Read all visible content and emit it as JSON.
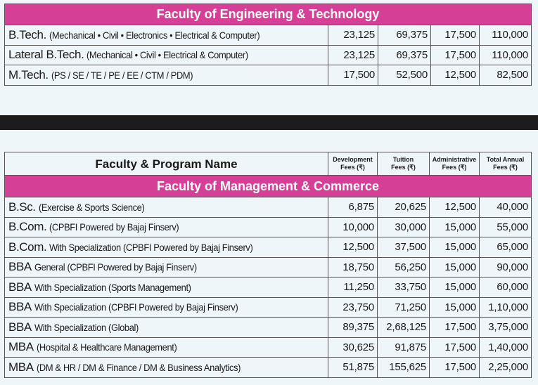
{
  "engineering": {
    "title": "Faculty of Engineering & Technology",
    "rows": [
      {
        "prefix": "B.Tech.",
        "detail": "(Mechanical • Civil • Electronics • Electrical & Computer)",
        "dev": "23,125",
        "tuition": "69,375",
        "admin": "17,500",
        "total": "110,000"
      },
      {
        "prefix": "Lateral B.Tech.",
        "detail": "(Mechanical • Civil • Electrical & Computer)",
        "dev": "23,125",
        "tuition": "69,375",
        "admin": "17,500",
        "total": "110,000"
      },
      {
        "prefix": "M.Tech.",
        "detail": "(PS / SE / TE / PE / EE / CTM / PDM)",
        "dev": "17,500",
        "tuition": "52,500",
        "admin": "12,500",
        "total": "82,500"
      }
    ]
  },
  "header": {
    "program": "Faculty & Program Name",
    "dev": "Development Fees (₹)",
    "tuition": "Tuition Fees (₹)",
    "admin": "Administrative Fees (₹)",
    "total": "Total Annual Fees (₹)"
  },
  "management": {
    "title": "Faculty of Management & Commerce",
    "rows": [
      {
        "prefix": "B.Sc.",
        "detail": "(Exercise & Sports Science)",
        "dev": "6,875",
        "tuition": "20,625",
        "admin": "12,500",
        "total": "40,000"
      },
      {
        "prefix": "B.Com.",
        "detail": "(CPBFI Powered by Bajaj Finserv)",
        "dev": "10,000",
        "tuition": "30,000",
        "admin": "15,000",
        "total": "55,000"
      },
      {
        "prefix": "B.Com.",
        "detail": "With Specialization (CPBFI Powered by Bajaj Finserv)",
        "dev": "12,500",
        "tuition": "37,500",
        "admin": "15,000",
        "total": "65,000"
      },
      {
        "prefix": "BBA",
        "detail": "General (CPBFI Powered by Bajaj Finserv)",
        "dev": "18,750",
        "tuition": "56,250",
        "admin": "15,000",
        "total": "90,000"
      },
      {
        "prefix": "BBA",
        "detail": "With Specialization (Sports Management)",
        "dev": "11,250",
        "tuition": "33,750",
        "admin": "15,000",
        "total": "60,000"
      },
      {
        "prefix": "BBA",
        "detail": "With Specialization (CPBFI Powered by Bajaj Finserv)",
        "dev": "23,750",
        "tuition": "71,250",
        "admin": "15,000",
        "total": "1,10,000"
      },
      {
        "prefix": "BBA",
        "detail": "With Specialization (Global)",
        "dev": "89,375",
        "tuition": "2,68,125",
        "admin": "17,500",
        "total": "3,75,000"
      },
      {
        "prefix": "MBA",
        "detail": "(Hospital & Healthcare Management)",
        "dev": "30,625",
        "tuition": "91,875",
        "admin": "17,500",
        "total": "1,40,000"
      },
      {
        "prefix": "MBA",
        "detail": "(DM & HR / DM & Finance / DM & Business Analytics)",
        "dev": "51,875",
        "tuition": "155,625",
        "admin": "17,500",
        "total": "2,25,000"
      }
    ]
  }
}
